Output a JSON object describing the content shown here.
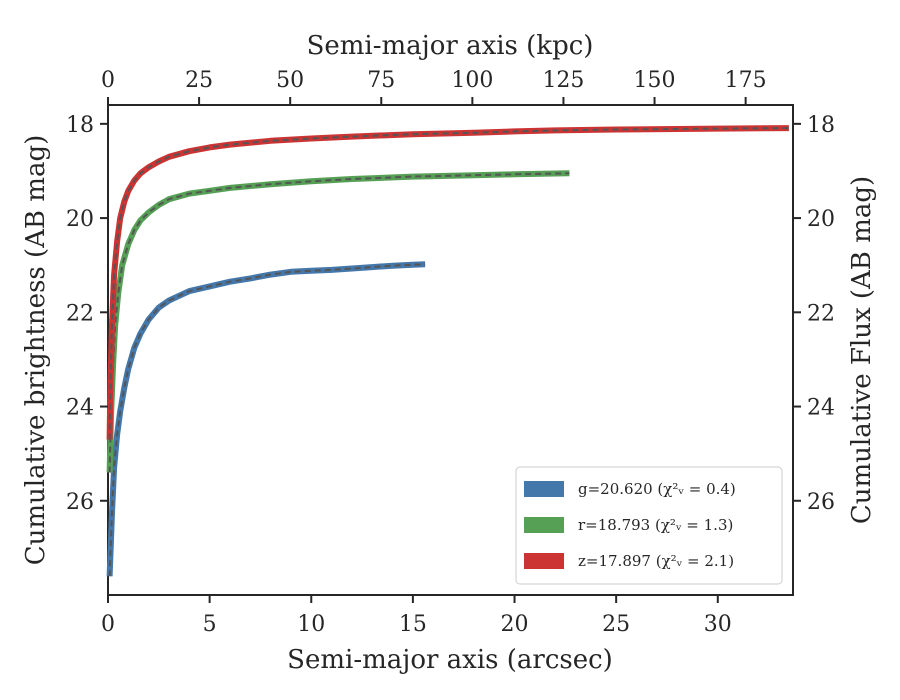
{
  "chart_data": {
    "type": "line",
    "xlabel": "Semi-major axis (arcsec)",
    "ylabel": "Cumulative brightness (AB mag)",
    "x2label": "Semi-major axis (kpc)",
    "y2label": "Cumulative Flux (AB mag)",
    "xlim": [
      0,
      33.7
    ],
    "ylim": [
      28,
      17.6
    ],
    "x2lim": [
      0,
      188
    ],
    "y_inverted": true,
    "xticks": [
      "0",
      "5",
      "10",
      "15",
      "20",
      "25",
      "30"
    ],
    "xtick_values": [
      0,
      5,
      10,
      15,
      20,
      25,
      30
    ],
    "yticks": [
      "18",
      "20",
      "22",
      "24",
      "26"
    ],
    "ytick_values": [
      18,
      20,
      22,
      24,
      26
    ],
    "x2ticks": [
      "0",
      "25",
      "50",
      "75",
      "100",
      "125",
      "150",
      "175"
    ],
    "x2tick_values": [
      0,
      25,
      50,
      75,
      100,
      125,
      150,
      175
    ],
    "legend_position": "lower-right",
    "grid": false,
    "model_line": "dashed gray",
    "series": [
      {
        "name": "g=20.620 ($\\chi^2_\\nu=0.4$)",
        "legend_label": "g=20.620 (χ²ᵥ = 0.4)",
        "band": "g",
        "color": "#4477aa",
        "x": [
          0.08,
          0.2,
          0.3,
          0.45,
          0.6,
          0.8,
          1.0,
          1.3,
          1.6,
          2.0,
          2.5,
          3.0,
          3.5,
          4.0,
          5.0,
          6.0,
          7.0,
          8.0,
          9.0,
          10.0,
          11.0,
          12.0,
          13.0,
          14.0,
          15.0,
          15.6
        ],
        "y": [
          27.6,
          26.2,
          25.3,
          24.6,
          24.1,
          23.6,
          23.2,
          22.75,
          22.45,
          22.15,
          21.9,
          21.75,
          21.65,
          21.55,
          21.45,
          21.35,
          21.28,
          21.2,
          21.14,
          21.12,
          21.1,
          21.07,
          21.04,
          21.01,
          20.99,
          20.98
        ]
      },
      {
        "name": "r=18.793 ($\\chi^2_\\nu=1.3$)",
        "legend_label": "r=18.793 (χ²ᵥ = 1.3)",
        "band": "r",
        "color": "#55a055",
        "x": [
          0.08,
          0.15,
          0.25,
          0.35,
          0.5,
          0.7,
          1.0,
          1.3,
          1.6,
          2.0,
          2.5,
          3.0,
          4.0,
          5.0,
          6.0,
          8.0,
          10.0,
          12.0,
          15.0,
          18.0,
          20.0,
          22.7
        ],
        "y": [
          25.4,
          24.2,
          23.1,
          22.3,
          21.6,
          21.0,
          20.55,
          20.25,
          20.05,
          19.88,
          19.72,
          19.6,
          19.48,
          19.42,
          19.36,
          19.28,
          19.22,
          19.17,
          19.12,
          19.09,
          19.07,
          19.05
        ]
      },
      {
        "name": "z=17.897 ($\\chi^2_\\nu=2.1$)",
        "legend_label": "z=17.897 (χ²ᵥ = 2.1)",
        "band": "z",
        "color": "#cc3333",
        "x": [
          0.08,
          0.12,
          0.2,
          0.3,
          0.45,
          0.6,
          0.8,
          1.0,
          1.3,
          1.6,
          2.0,
          2.5,
          3.0,
          4.0,
          5.0,
          6.0,
          8.0,
          10.0,
          12.0,
          15.0,
          18.0,
          20.0,
          22.0,
          25.0,
          28.0,
          30.0,
          33.5
        ],
        "y": [
          24.7,
          23.5,
          22.2,
          21.2,
          20.5,
          20.0,
          19.65,
          19.42,
          19.2,
          19.05,
          18.92,
          18.8,
          18.7,
          18.58,
          18.5,
          18.44,
          18.36,
          18.31,
          18.27,
          18.22,
          18.19,
          18.16,
          18.14,
          18.12,
          18.11,
          18.1,
          18.09
        ]
      }
    ]
  }
}
